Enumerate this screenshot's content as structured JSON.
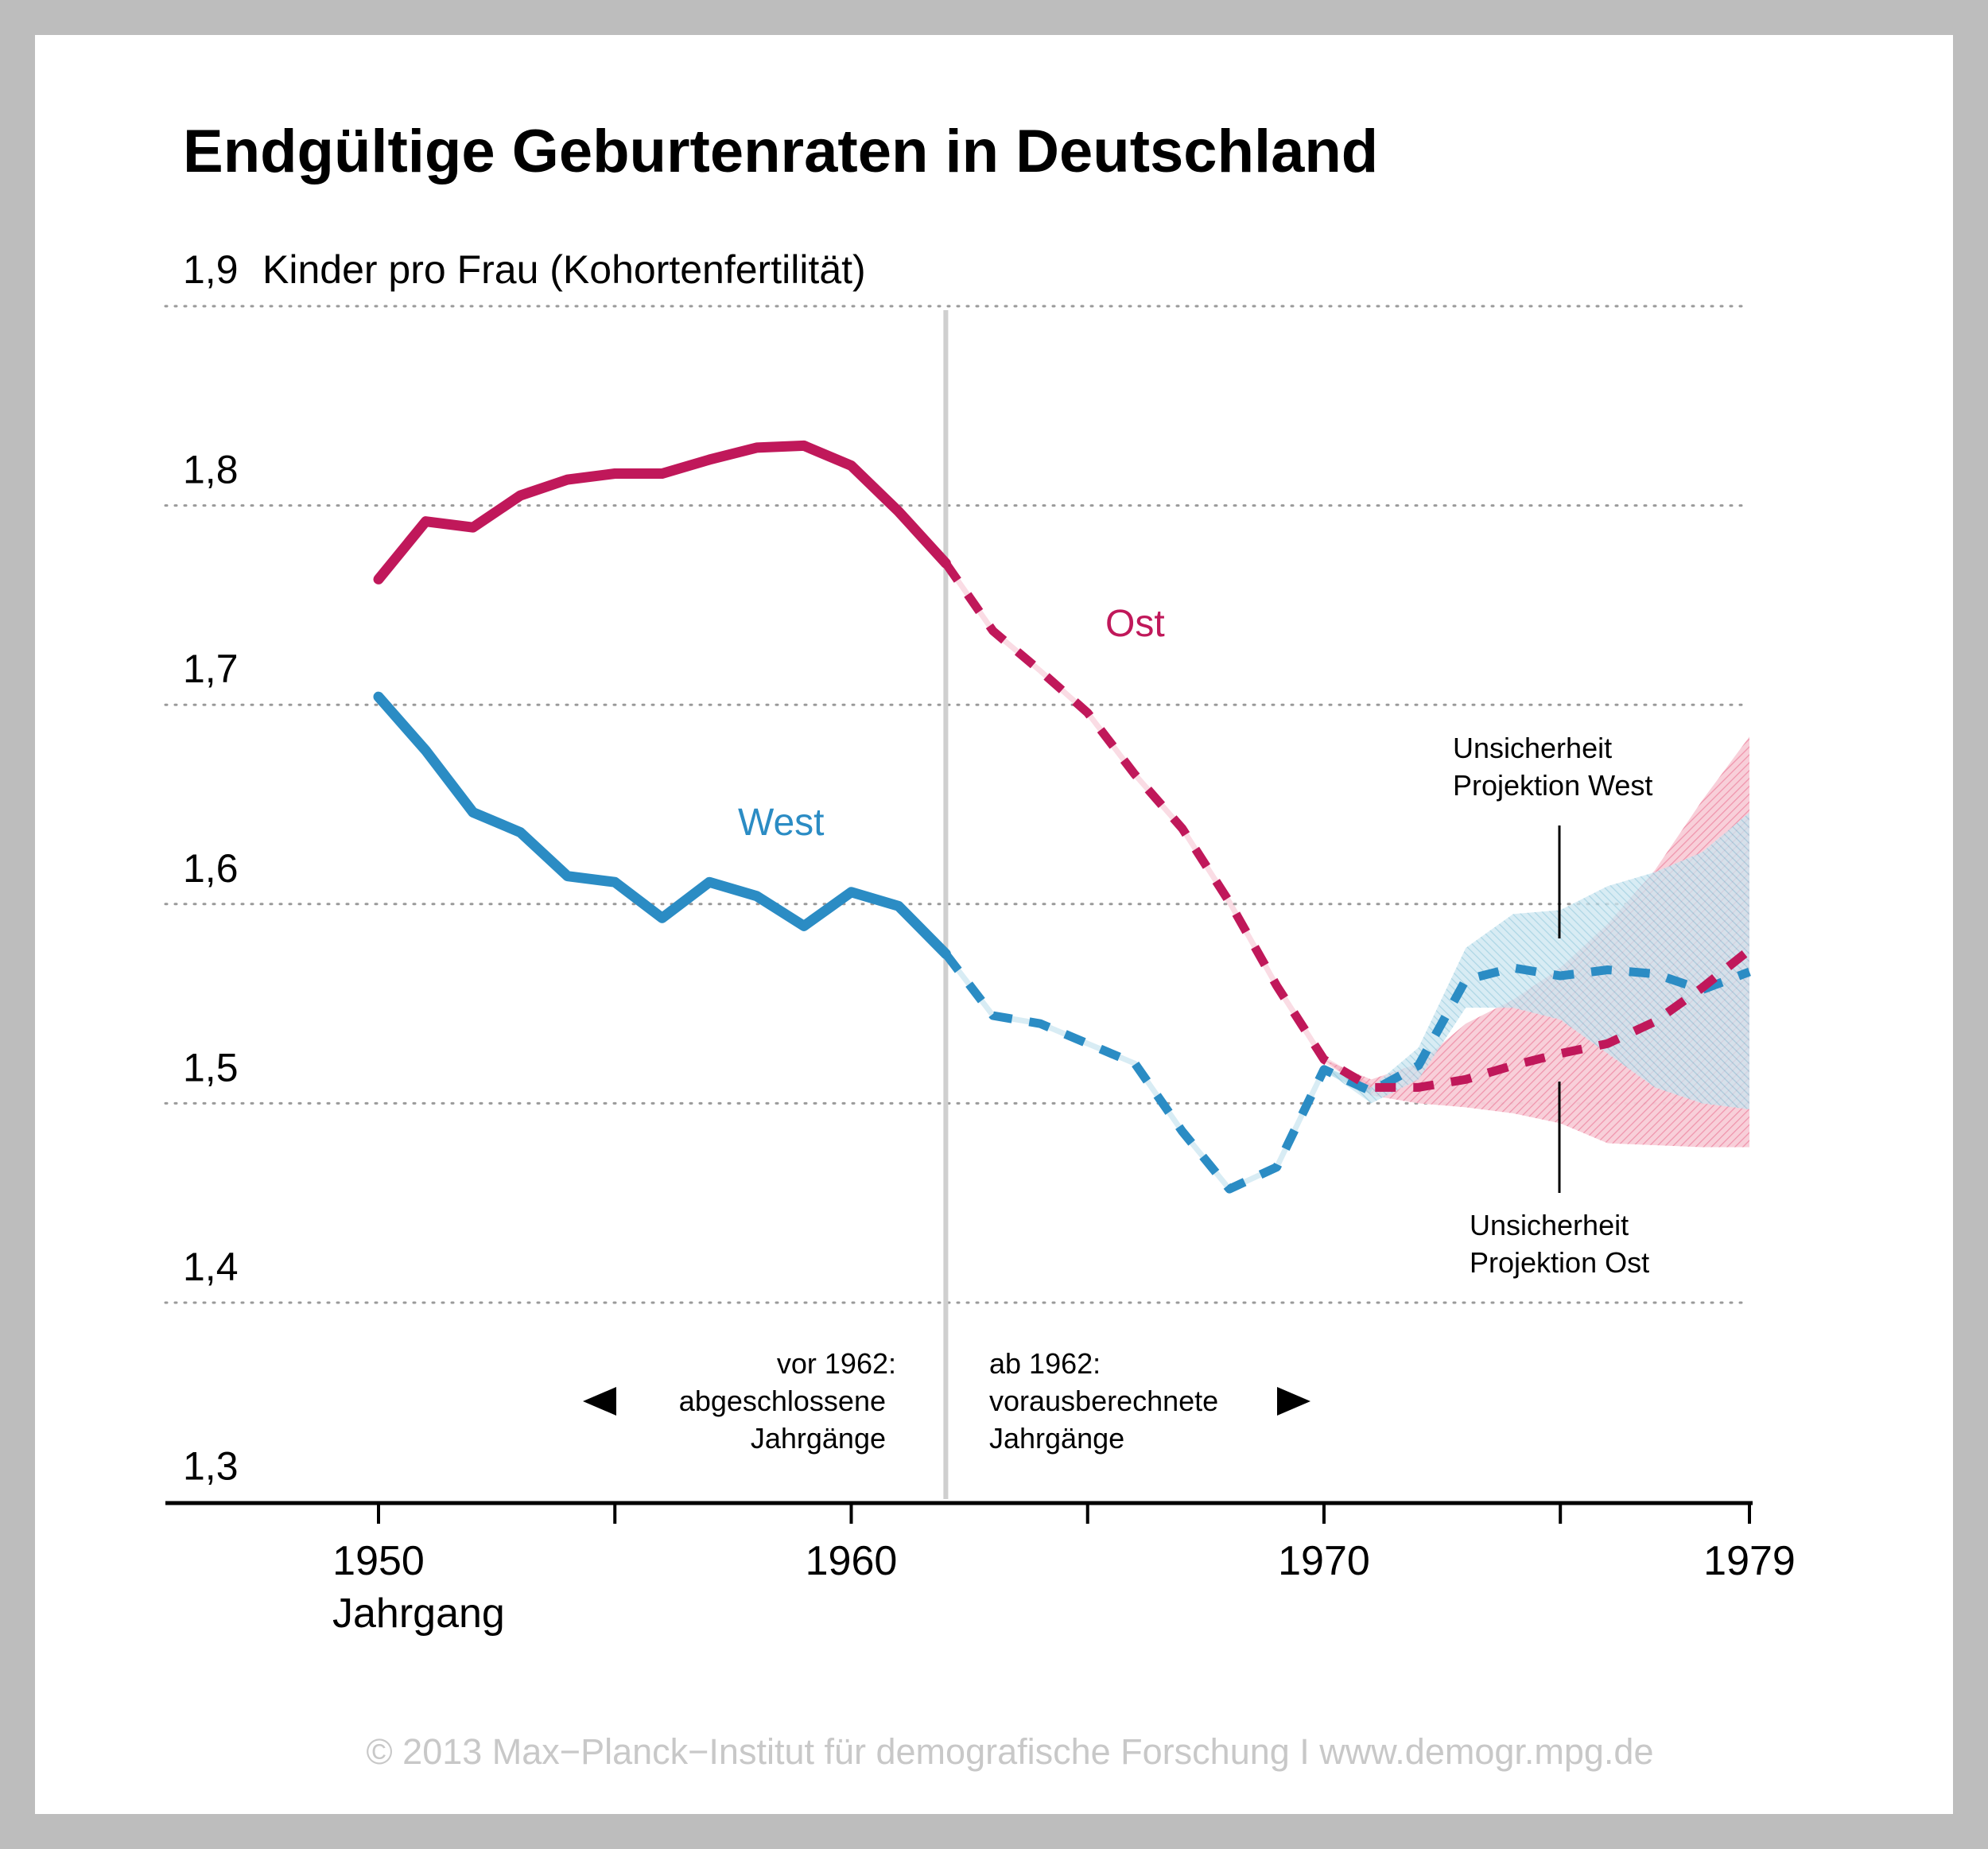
{
  "chart_data": {
    "type": "line",
    "title": "Endgültige Geburtenraten in Deutschland",
    "ylabel": "Kinder pro Frau (Kohortenfertilität)",
    "xlabel": "Jahrgang",
    "xlim": [
      1945.5,
      1979
    ],
    "ylim": [
      1.3,
      1.9
    ],
    "yticks": [
      "1,3",
      "1,4",
      "1,5",
      "1,6",
      "1,7",
      "1,8",
      "1,9"
    ],
    "ytick_values": [
      1.3,
      1.4,
      1.5,
      1.6,
      1.7,
      1.8,
      1.9
    ],
    "xticks": [
      "1950",
      "1960",
      "1970",
      "1979"
    ],
    "xtick_values": [
      1950,
      1960,
      1970,
      1979
    ],
    "minor_xtick_values": [
      1955,
      1965,
      1975
    ],
    "grid": "horizontal dotted",
    "divider_year": 1962,
    "series": [
      {
        "name": "Ost",
        "color": "#c0185a",
        "observed": [
          [
            1950,
            1.763
          ],
          [
            1951,
            1.792
          ],
          [
            1952,
            1.789
          ],
          [
            1953,
            1.805
          ],
          [
            1954,
            1.813
          ],
          [
            1955,
            1.816
          ],
          [
            1956,
            1.816
          ],
          [
            1957,
            1.823
          ],
          [
            1958,
            1.829
          ],
          [
            1959,
            1.83
          ],
          [
            1960,
            1.82
          ],
          [
            1961,
            1.797
          ],
          [
            1962,
            1.771
          ]
        ],
        "projected": [
          [
            1962,
            1.771
          ],
          [
            1963,
            1.737
          ],
          [
            1964,
            1.717
          ],
          [
            1965,
            1.696
          ],
          [
            1966,
            1.665
          ],
          [
            1967,
            1.638
          ],
          [
            1968,
            1.601
          ],
          [
            1969,
            1.559
          ],
          [
            1970,
            1.522
          ],
          [
            1971,
            1.508
          ],
          [
            1972,
            1.508
          ],
          [
            1973,
            1.512
          ],
          [
            1974,
            1.519
          ],
          [
            1975,
            1.525
          ],
          [
            1976,
            1.53
          ],
          [
            1977,
            1.541
          ],
          [
            1978,
            1.558
          ],
          [
            1979,
            1.577
          ]
        ],
        "band_upper": [
          [
            1970,
            1.522
          ],
          [
            1971,
            1.512
          ],
          [
            1972,
            1.52
          ],
          [
            1973,
            1.54
          ],
          [
            1974,
            1.552
          ],
          [
            1975,
            1.568
          ],
          [
            1976,
            1.59
          ],
          [
            1977,
            1.617
          ],
          [
            1978,
            1.652
          ],
          [
            1979,
            1.684
          ]
        ],
        "band_lower": [
          [
            1970,
            1.522
          ],
          [
            1971,
            1.504
          ],
          [
            1972,
            1.5
          ],
          [
            1973,
            1.498
          ],
          [
            1974,
            1.495
          ],
          [
            1975,
            1.49
          ],
          [
            1976,
            1.48
          ],
          [
            1977,
            1.479
          ],
          [
            1978,
            1.478
          ],
          [
            1979,
            1.478
          ]
        ]
      },
      {
        "name": "West",
        "color": "#2b8cc4",
        "observed": [
          [
            1950,
            1.704
          ],
          [
            1951,
            1.677
          ],
          [
            1952,
            1.646
          ],
          [
            1953,
            1.636
          ],
          [
            1954,
            1.614
          ],
          [
            1955,
            1.611
          ],
          [
            1956,
            1.593
          ],
          [
            1957,
            1.611
          ],
          [
            1958,
            1.604
          ],
          [
            1959,
            1.589
          ],
          [
            1960,
            1.606
          ],
          [
            1961,
            1.599
          ],
          [
            1962,
            1.575
          ]
        ],
        "projected": [
          [
            1962,
            1.575
          ],
          [
            1963,
            1.544
          ],
          [
            1964,
            1.54
          ],
          [
            1965,
            1.53
          ],
          [
            1966,
            1.52
          ],
          [
            1967,
            1.486
          ],
          [
            1968,
            1.457
          ],
          [
            1969,
            1.468
          ],
          [
            1970,
            1.517
          ],
          [
            1971,
            1.506
          ],
          [
            1972,
            1.519
          ],
          [
            1973,
            1.562
          ],
          [
            1974,
            1.568
          ],
          [
            1975,
            1.564
          ],
          [
            1976,
            1.567
          ],
          [
            1977,
            1.565
          ],
          [
            1978,
            1.557
          ],
          [
            1979,
            1.566
          ]
        ],
        "band_upper": [
          [
            1970,
            1.519
          ],
          [
            1971,
            1.508
          ],
          [
            1972,
            1.528
          ],
          [
            1973,
            1.578
          ],
          [
            1974,
            1.595
          ],
          [
            1975,
            1.597
          ],
          [
            1976,
            1.609
          ],
          [
            1977,
            1.616
          ],
          [
            1978,
            1.626
          ],
          [
            1979,
            1.646
          ]
        ],
        "band_lower": [
          [
            1970,
            1.517
          ],
          [
            1971,
            1.5
          ],
          [
            1972,
            1.512
          ],
          [
            1973,
            1.548
          ],
          [
            1974,
            1.548
          ],
          [
            1975,
            1.542
          ],
          [
            1976,
            1.525
          ],
          [
            1977,
            1.508
          ],
          [
            1978,
            1.5
          ],
          [
            1979,
            1.497
          ]
        ]
      }
    ],
    "annotations": {
      "ost_label": "Ost",
      "west_label": "West",
      "band_west_1": "Unsicherheit",
      "band_west_2": "Projektion West",
      "band_ost_1": "Unsicherheit",
      "band_ost_2": "Projektion Ost",
      "left_1": "vor 1962:",
      "left_2": "abgeschlossene",
      "left_3": "Jahrgänge",
      "right_1": "ab 1962:",
      "right_2": "vorausberechnete",
      "right_3": "Jahrgänge"
    }
  },
  "footer": "© 2013 Max−Planck−Institut für demografische Forschung I www.demogr.mpg.de",
  "colors": {
    "ost": "#c0185a",
    "west": "#2b8cc4",
    "ost_band": "#f4a7b9",
    "west_band": "#a9d3e4",
    "background": "#ffffff",
    "border": "#bdbdbd"
  }
}
